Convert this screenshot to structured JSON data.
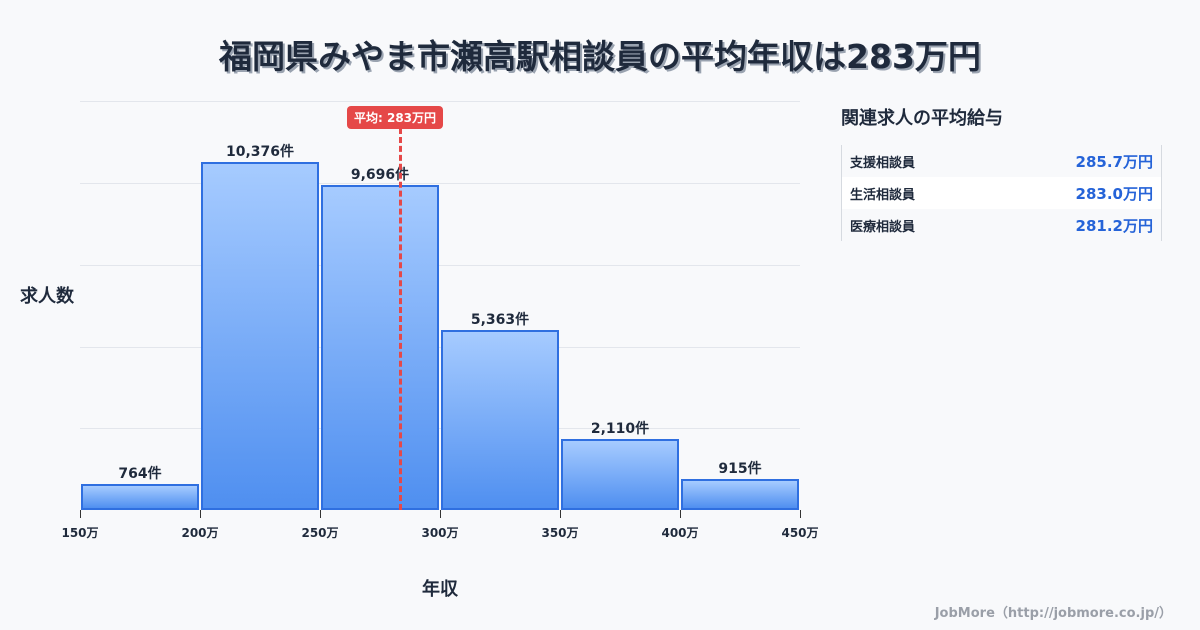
{
  "title": "福岡県みやま市瀬高駅相談員の平均年収は283万円",
  "chart_data": {
    "type": "bar",
    "title": "福岡県みやま市瀬高駅相談員の平均年収は283万円",
    "xlabel": "年収",
    "ylabel": "求人数",
    "categories": [
      "150-200万",
      "200-250万",
      "250-300万",
      "300-350万",
      "350-400万",
      "400-450万"
    ],
    "values": [
      764,
      10376,
      9696,
      5363,
      2110,
      915
    ],
    "value_labels": [
      "764件",
      "10,376件",
      "9,696件",
      "5,363件",
      "2,110件",
      "915件"
    ],
    "x_ticks": [
      "150万",
      "200万",
      "250万",
      "300万",
      "350万",
      "400万",
      "450万"
    ],
    "xlim": [
      150,
      450
    ],
    "ylim": [
      0,
      12200
    ],
    "grid": true,
    "annotation": {
      "label": "平均: 283万円",
      "x": 283,
      "style": "dashed red vertical line"
    }
  },
  "axis": {
    "x_title": "年収",
    "y_title": "求人数"
  },
  "avg_badge": "平均: 283万円",
  "sidebar": {
    "title": "関連求人の平均給与",
    "rows": [
      {
        "name": "支援相談員",
        "value": "285.7万円"
      },
      {
        "name": "生活相談員",
        "value": "283.0万円"
      },
      {
        "name": "医療相談員",
        "value": "281.2万円"
      }
    ]
  },
  "footer": "JobMore（http://jobmore.co.jp/）",
  "colors": {
    "bar_border": "#2f6fe0",
    "bar_top": "#a6cbff",
    "bar_bottom": "#4f8ff0",
    "average_line": "#e54848",
    "value_text": "#2563d8"
  }
}
